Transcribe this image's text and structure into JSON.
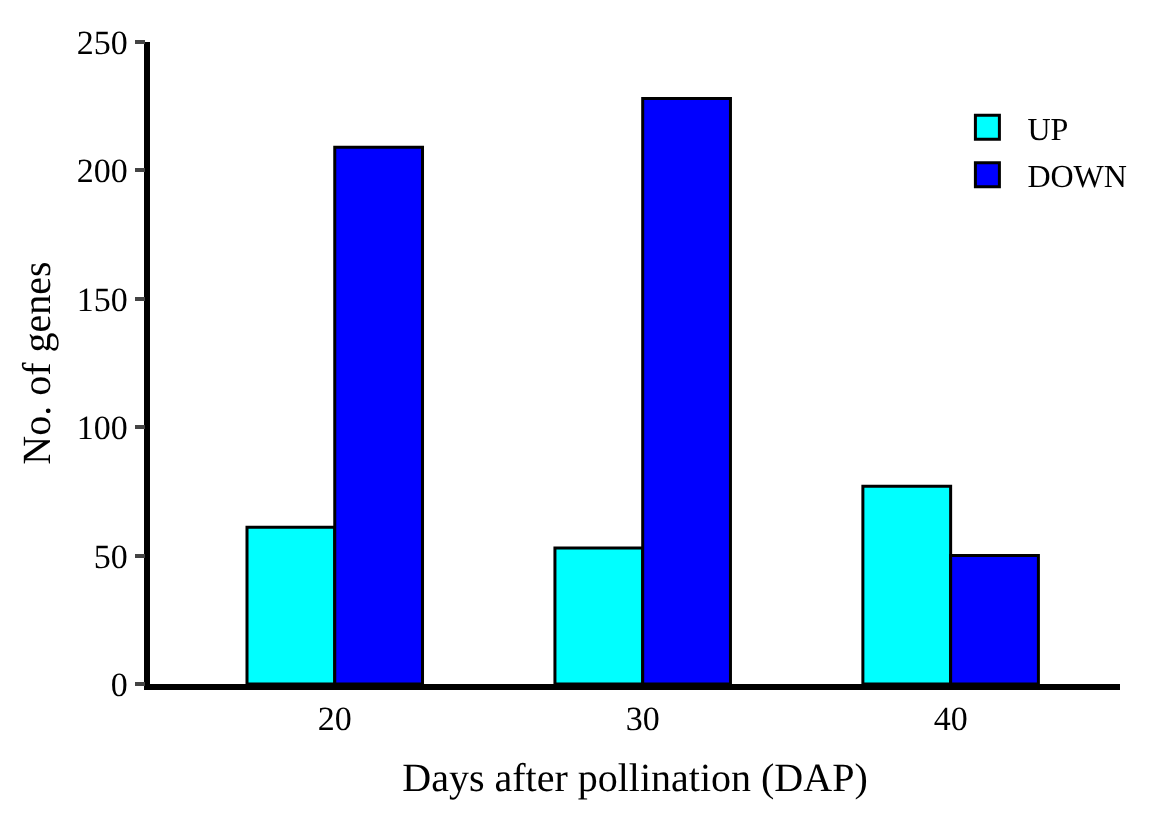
{
  "chart_data": {
    "type": "bar",
    "xlabel": "Days after pollination (DAP)",
    "ylabel": "No. of genes",
    "categories": [
      "20",
      "30",
      "40"
    ],
    "series": [
      {
        "name": "UP",
        "color": "#00ffff",
        "values": [
          61,
          53,
          77
        ]
      },
      {
        "name": "DOWN",
        "color": "#0000ff",
        "values": [
          209,
          228,
          50
        ]
      }
    ],
    "ylim": [
      0,
      250
    ],
    "yticks": [
      0,
      50,
      100,
      150,
      200,
      250
    ],
    "legend": "top right"
  }
}
